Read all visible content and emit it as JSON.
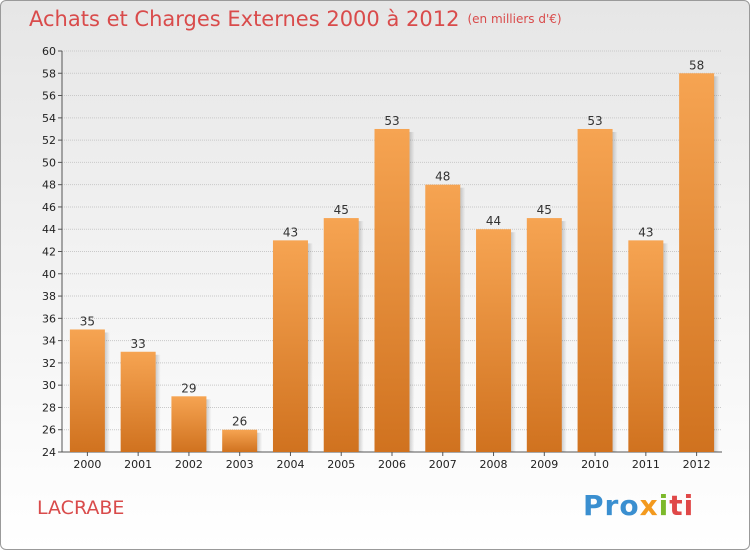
{
  "title": "Achats et Charges Externes 2000 à 2012",
  "subtitle": "(en milliers d'€)",
  "commune": "LACRABE",
  "logo": {
    "p1": "Pro",
    "p2": "x",
    "p3": "i",
    "p4": "ti"
  },
  "colors": {
    "bar_top": "#f6a452",
    "bar_bottom": "#d0721f",
    "title": "#d94b4b"
  },
  "chart_data": {
    "type": "bar",
    "categories": [
      "2000",
      "2001",
      "2002",
      "2003",
      "2004",
      "2005",
      "2006",
      "2007",
      "2008",
      "2009",
      "2010",
      "2011",
      "2012"
    ],
    "values": [
      35,
      33,
      29,
      26,
      43,
      45,
      53,
      48,
      44,
      45,
      53,
      43,
      58
    ],
    "ylim": [
      24,
      60
    ],
    "yticks": [
      24,
      26,
      28,
      30,
      32,
      34,
      36,
      38,
      40,
      42,
      44,
      46,
      48,
      50,
      52,
      54,
      56,
      58,
      60
    ],
    "grid": true,
    "xlabel": "",
    "ylabel": ""
  }
}
